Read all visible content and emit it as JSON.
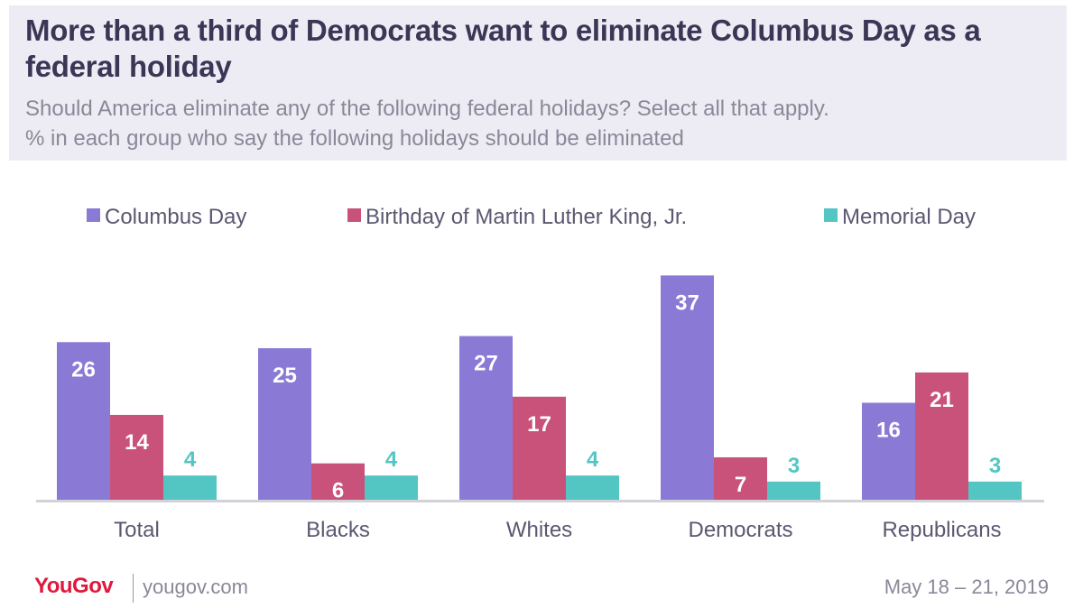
{
  "header": {
    "title": "More than a third of Democrats want to eliminate Columbus Day as a federal holiday",
    "subtitle_line1": "Should America eliminate any of the following federal holidays? Select all that apply.",
    "subtitle_line2": "% in each group who say the following holidays should be eliminated"
  },
  "chart_data": {
    "type": "bar",
    "categories": [
      "Total",
      "Blacks",
      "Whites",
      "Democrats",
      "Republicans"
    ],
    "series": [
      {
        "name": "Columbus Day",
        "color": "#8a7ad6",
        "values": [
          26,
          25,
          27,
          37,
          16
        ]
      },
      {
        "name": "Birthday of Martin Luther King, Jr.",
        "color": "#c9527a",
        "values": [
          14,
          6,
          17,
          7,
          21
        ]
      },
      {
        "name": "Memorial Day",
        "color": "#53c6c4",
        "values": [
          4,
          4,
          4,
          3,
          3
        ]
      }
    ],
    "legend_position": "top",
    "grid": false,
    "data_labels": true,
    "ylim": [
      0,
      37
    ]
  },
  "footer": {
    "brand": "YouGov",
    "url": "yougov.com",
    "date": "May 18 – 21, 2019"
  }
}
